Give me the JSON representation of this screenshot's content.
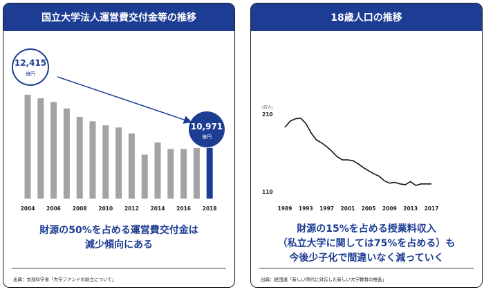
{
  "colors": {
    "header": "#1d3c93",
    "bar_grey": "#a3a3a3",
    "bar_highlight": "#1d3c93",
    "line": "#111111"
  },
  "left_panel": {
    "title": "国立大学法人運営費交付金等の推移",
    "headline_lines": [
      "財源の50%を占める運営費交付金は",
      "減少傾向にある"
    ],
    "source": "出典：文部科学省「大学ファンドの創立について」",
    "annotations": {
      "start": {
        "value": "12,415",
        "unit": "億円"
      },
      "end": {
        "value": "10,971",
        "unit": "億円"
      },
      "arrow_icon": "arrow-down-right-icon"
    }
  },
  "right_panel": {
    "title": "18歳人口の推移",
    "headline_lines": [
      "財源の15%を占める授業料収入",
      "（私立大学に関しては75%を占める）も",
      "今後少子化で間違いなく減っていく"
    ],
    "source": "出典：経団連「新しい時代に対応した新しい大学教育の推進」"
  },
  "chart_data": [
    {
      "type": "bar",
      "title": "国立大学法人運営費交付金等の推移",
      "categories": [
        "2004",
        "2005",
        "2006",
        "2007",
        "2008",
        "2009",
        "2010",
        "2011",
        "2012",
        "2013",
        "2014",
        "2015",
        "2016",
        "2017",
        "2018"
      ],
      "tick_labels": [
        "2004",
        "2006",
        "2008",
        "2010",
        "2012",
        "2014",
        "2016",
        "2018"
      ],
      "values": [
        12415,
        12317,
        12214,
        12043,
        11813,
        11695,
        11585,
        11528,
        11366,
        10792,
        11123,
        10945,
        10945,
        10970,
        10971
      ],
      "unit": "億円",
      "highlight_category": "2018",
      "ylim": [
        9600,
        12600
      ],
      "grid": false
    },
    {
      "type": "line",
      "title": "18歳人口の推移",
      "x": [
        1989,
        1990,
        1991,
        1992,
        1993,
        1994,
        1995,
        1996,
        1997,
        1998,
        1999,
        2000,
        2001,
        2002,
        2003,
        2004,
        2005,
        2006,
        2007,
        2008,
        2009,
        2010,
        2011,
        2012,
        2013,
        2014,
        2015,
        2016,
        2017
      ],
      "values": [
        193,
        201,
        204,
        205,
        198,
        186,
        177,
        173,
        168,
        162,
        155,
        151,
        151,
        150,
        146,
        141,
        137,
        133,
        130,
        124,
        121,
        122,
        120,
        119,
        123,
        118,
        120,
        120,
        120
      ],
      "tick_labels": [
        "1989",
        "1993",
        "1997",
        "2001",
        "2005",
        "2009",
        "2013",
        "2017"
      ],
      "y_ticks": [
        "210",
        "110"
      ],
      "y_unit_label": "(万人)",
      "ylim": [
        110,
        210
      ],
      "grid": false
    }
  ]
}
